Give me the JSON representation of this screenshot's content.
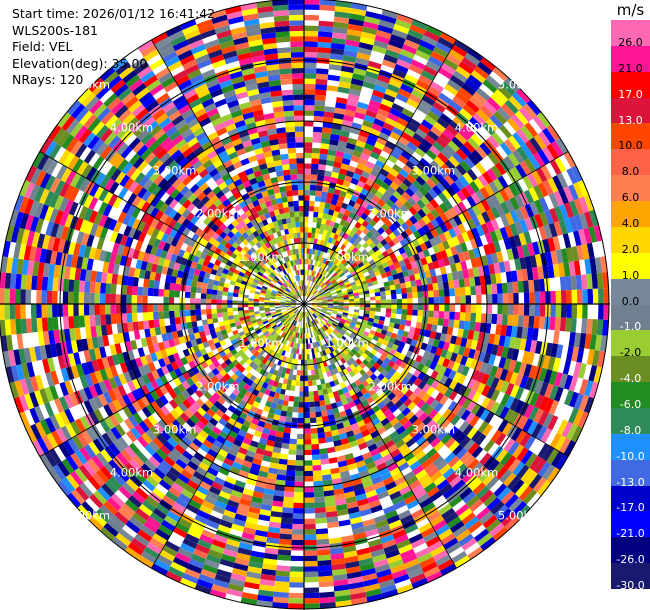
{
  "info": {
    "start_time": "Start time: 2026/01/12 16:41:42",
    "instrument": "WLS200s-181",
    "field": "Field: VEL",
    "elevation": "Elevation(deg): 35.00",
    "nrays": "NRays: 120"
  },
  "colorbar": {
    "unit": "m/s",
    "ticks": [
      "26.0",
      "21.0",
      "17.0",
      "13.0",
      "10.0",
      "8.0",
      "6.0",
      "4.0",
      "2.0",
      "1.0",
      "0.0",
      "-1.0",
      "-2.0",
      "-4.0",
      "-6.0",
      "-8.0",
      "-10.0",
      "-13.0",
      "-17.0",
      "-21.0",
      "-26.0",
      "-30.0"
    ],
    "colors": [
      "#ff69b4",
      "#ff1493",
      "#ff0000",
      "#dc143c",
      "#ff4500",
      "#ff6347",
      "#ff7f50",
      "#ffa500",
      "#ffd700",
      "#ffff00",
      "#778899",
      "#708090",
      "#9acd32",
      "#6b8e23",
      "#228b22",
      "#2e8b57",
      "#1e90ff",
      "#4169e1",
      "#0000cd",
      "#0000ff",
      "#000080",
      "#191970"
    ]
  },
  "chart_data": {
    "type": "heatmap",
    "subtype": "radar PPI (plan position indicator)",
    "field": "VEL",
    "units": "m/s",
    "nrays": 120,
    "elevation_deg": 35.0,
    "colorbar_range": [
      -30.0,
      26.0
    ],
    "range_rings": [
      {
        "label": "1.00km"
      },
      {
        "label": "2.00km"
      },
      {
        "label": "3.00km"
      },
      {
        "label": "4.00km"
      },
      {
        "label": "5.00km"
      }
    ]
  }
}
